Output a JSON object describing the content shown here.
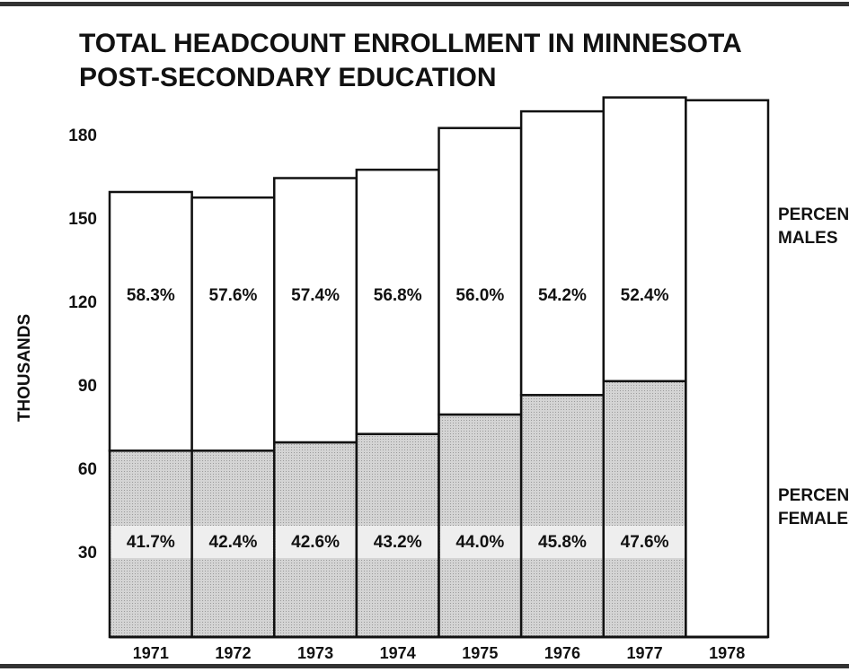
{
  "chart_data": {
    "type": "stacked_bar",
    "title": [
      "TOTAL HEADCOUNT ENROLLMENT IN MINNESOTA",
      "POST-SECONDARY EDUCATION"
    ],
    "y_label": "THOUSANDS",
    "categories": [
      "1971",
      "1972",
      "1973",
      "1974",
      "1975",
      "1976",
      "1977",
      "1978"
    ],
    "series": [
      {
        "name": [
          "PERCENT",
          "FEMALES"
        ],
        "color": "#c9c9c9",
        "values": [
          67,
          67,
          70,
          73,
          80,
          87,
          92,
          null
        ],
        "bar_labels": [
          "41.7%",
          "42.4%",
          "42.6%",
          "43.2%",
          "44.0%",
          "45.8%",
          "47.6%",
          null
        ]
      },
      {
        "name": [
          "PERCENT",
          "MALES"
        ],
        "color": "#ffffff",
        "values": [
          93,
          91,
          95,
          95,
          103,
          102,
          102,
          null
        ],
        "bar_labels": [
          "58.3%",
          "57.6%",
          "57.4%",
          "56.8%",
          "56.0%",
          "54.2%",
          "52.4%",
          null
        ]
      },
      {
        "color": "#ffffff",
        "values": [
          null,
          null,
          null,
          null,
          null,
          null,
          null,
          193
        ]
      }
    ],
    "ylim": [
      0,
      195
    ],
    "yticks": [
      30,
      60,
      90,
      120,
      150,
      180
    ]
  }
}
